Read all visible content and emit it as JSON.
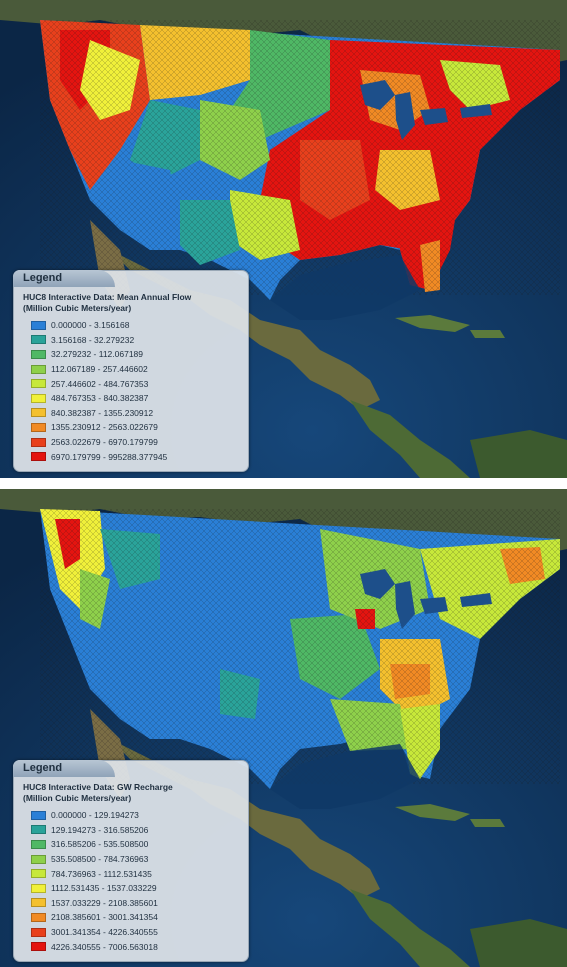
{
  "maps": [
    {
      "legend_header": "Legend",
      "title_line1": "HUC8 Interactive Data: Mean Annual Flow",
      "title_line2": "(Million Cubic Meters/year)",
      "classes": [
        {
          "label": "0.000000 - 3.156168",
          "color": "#2a7fd6"
        },
        {
          "label": "3.156168 - 32.279232",
          "color": "#2aa39a"
        },
        {
          "label": "32.279232 - 112.067189",
          "color": "#4fb865"
        },
        {
          "label": "112.067189 - 257.446602",
          "color": "#8ed04b"
        },
        {
          "label": "257.446602 - 484.767353",
          "color": "#c7e83a"
        },
        {
          "label": "484.767353 - 840.382387",
          "color": "#f0f03a"
        },
        {
          "label": "840.382387 - 1355.230912",
          "color": "#f4c02e"
        },
        {
          "label": "1355.230912 - 2563.022679",
          "color": "#f18a24"
        },
        {
          "label": "2563.022679 - 6970.179799",
          "color": "#e8401c"
        },
        {
          "label": "6970.179799 - 995288.377945",
          "color": "#e41410"
        }
      ]
    },
    {
      "legend_header": "Legend",
      "title_line1": "HUC8 Interactive Data: GW Recharge",
      "title_line2": "(Million Cubic Meters/year)",
      "classes": [
        {
          "label": "0.000000 - 129.194273",
          "color": "#2a7fd6"
        },
        {
          "label": "129.194273 - 316.585206",
          "color": "#2aa39a"
        },
        {
          "label": "316.585206 - 535.508500",
          "color": "#4fb865"
        },
        {
          "label": "535.508500 - 784.736963",
          "color": "#8ed04b"
        },
        {
          "label": "784.736963 - 1112.531435",
          "color": "#c7e83a"
        },
        {
          "label": "1112.531435 - 1537.033229",
          "color": "#f0f03a"
        },
        {
          "label": "1537.033229 - 2108.385601",
          "color": "#f4c02e"
        },
        {
          "label": "2108.385601 - 3001.341354",
          "color": "#f18a24"
        },
        {
          "label": "3001.341354 - 4226.340555",
          "color": "#e8401c"
        },
        {
          "label": "4226.340555 - 7006.563018",
          "color": "#e41410"
        }
      ]
    }
  ]
}
